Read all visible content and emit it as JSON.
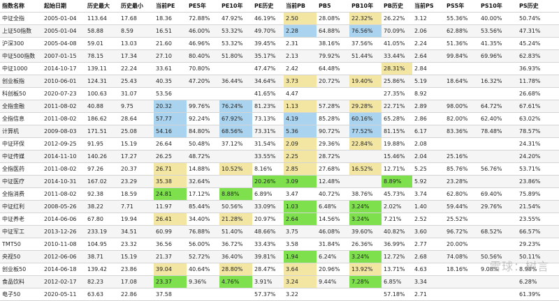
{
  "columns": [
    "指数名称",
    "起始日期",
    "历史最大",
    "历史最小",
    "当前PE",
    "PE5年",
    "PE10年",
    "PE历史",
    "当前PB",
    "PB5",
    "PB10年",
    "PB历史",
    "当前PS",
    "PS5年",
    "PS10年",
    "PS历史"
  ],
  "rows": [
    [
      "中证全指",
      "2005-01-04",
      "113.64",
      "17.68",
      "18.36",
      "72.88%",
      "47.92%",
      "46.19%",
      "2.50",
      "28.08%",
      "22.32%",
      "26.22%",
      "3.12",
      "55.36%",
      "40.00%",
      "50.74%"
    ],
    [
      "上证50指数",
      "2005-01-04",
      "58.88",
      "8.59",
      "16.51",
      "46.00%",
      "53.32%",
      "49.70%",
      "2.28",
      "64.88%",
      "76.56%",
      "70.09%",
      "2.06",
      "62.88%",
      "53.56%",
      "47.31%"
    ],
    [
      "沪深300",
      "2005-04-08",
      "59.01",
      "13.03",
      "21.60",
      "46.96%",
      "53.32%",
      "39.45%",
      "2.31",
      "38.16%",
      "37.56%",
      "41.05%",
      "2.24",
      "51.36%",
      "41.35%",
      "45.24%"
    ],
    [
      "中证500指数",
      "2007-01-15",
      "78.15",
      "17.34",
      "27.10",
      "80.40%",
      "51.80%",
      "35.17%",
      "2.13",
      "79.92%",
      "51.44%",
      "33.44%",
      "2.64",
      "99.84%",
      "69.96%",
      "62.83%"
    ],
    [
      "中证1000",
      "2014-10-17",
      "139.11",
      "22.24",
      "33.61",
      "70.80%",
      "",
      "47.47%",
      "2.42",
      "64.48%",
      "",
      "28.31%",
      "2.84",
      "",
      "",
      "36.93%"
    ],
    [
      "创业板指",
      "2010-06-01",
      "124.31",
      "25.43",
      "40.35",
      "47.20%",
      "36.44%",
      "34.64%",
      "3.73",
      "20.72%",
      "19.40%",
      "25.86%",
      "5.19",
      "18.64%",
      "16.32%",
      "11.78%"
    ],
    [
      "科创板50",
      "2020-07-23",
      "100.63",
      "31.07",
      "53.56",
      "",
      "",
      "41.65%",
      "4.47",
      "",
      "",
      "27.35%",
      "8.92",
      "",
      "",
      "26.68%"
    ],
    [
      "全指金融",
      "2011-08-02",
      "40.88",
      "9.75",
      "20.32",
      "99.76%",
      "76.24%",
      "81.23%",
      "1.13",
      "57.28%",
      "29.28%",
      "22.71%",
      "2.89",
      "98.00%",
      "64.72%",
      "67.61%"
    ],
    [
      "全指信息",
      "2011-08-02",
      "186.62",
      "28.64",
      "57.77",
      "92.24%",
      "67.92%",
      "73.13%",
      "4.19",
      "85.28%",
      "60.16%",
      "65.28%",
      "2.86",
      "82.00%",
      "62.40%",
      "63.02%"
    ],
    [
      "计算机",
      "2009-08-03",
      "171.51",
      "25.08",
      "54.16",
      "84.80%",
      "68.56%",
      "73.31%",
      "5.36",
      "90.72%",
      "77.52%",
      "81.15%",
      "6.17",
      "83.36%",
      "78.48%",
      "78.57%"
    ],
    [
      "中证环保",
      "2012-09-25",
      "91.95",
      "15.19",
      "26.64",
      "50.48%",
      "37.12%",
      "31.54%",
      "2.09",
      "29.36%",
      "22.84%",
      "19.88%",
      "2.08",
      "",
      "",
      "24.31%"
    ],
    [
      "中证传媒",
      "2014-11-10",
      "140.26",
      "17.27",
      "26.25",
      "48.72%",
      "",
      "33.55%",
      "2.25",
      "28.72%",
      "",
      "15.46%",
      "2.04",
      "25.16%",
      "",
      "24.20%"
    ],
    [
      "全指医药",
      "2011-08-02",
      "97.26",
      "20.37",
      "26.71",
      "14.88%",
      "10.52%",
      "8.16%",
      "2.85",
      "27.68%",
      "16.52%",
      "12.71%",
      "5.25",
      "85.76%",
      "56.76%",
      "53.71%"
    ],
    [
      "中证医疗",
      "2014-10-31",
      "167.02",
      "23.29",
      "35.38",
      "32.64%",
      "",
      "20.26%",
      "3.09",
      "12.48%",
      "",
      "8.89%",
      "5.92",
      "23.28%",
      "",
      "23.86%"
    ],
    [
      "全指消费",
      "2011-08-02",
      "92.38",
      "18.59",
      "24.81",
      "17.12%",
      "8.88%",
      "6.89%",
      "3.47",
      "40.72%",
      "38.76%",
      "45.73%",
      "3.74",
      "62.80%",
      "69.40%",
      "75.89%"
    ],
    [
      "中证红利",
      "2008-05-26",
      "38.22",
      "7.71",
      "11.97",
      "85.44%",
      "50.56%",
      "33.09%",
      "1.03",
      "6.48%",
      "3.24%",
      "2.02%",
      "1.40",
      "59.44%",
      "29.76%",
      "21.54%"
    ],
    [
      "中证养老",
      "2014-06-06",
      "67.80",
      "19.94",
      "26.41",
      "34.40%",
      "21.28%",
      "20.97%",
      "2.64",
      "14.56%",
      "3.24%",
      "7.21%",
      "2.52",
      "25.52%",
      "",
      "23.55%"
    ],
    [
      "中证军工",
      "2013-12-26",
      "233.19",
      "34.51",
      "60.99",
      "76.88%",
      "51.40%",
      "48.66%",
      "3.75",
      "46.08%",
      "39.60%",
      "40.82%",
      "3.60",
      "96.72%",
      "68.52%",
      "66.57%"
    ],
    [
      "TMT50",
      "2010-11-08",
      "104.95",
      "23.32",
      "36.56",
      "56.00%",
      "36.72%",
      "33.43%",
      "3.58",
      "31.84%",
      "26.36%",
      "36.99%",
      "2.77",
      "20.00%",
      "",
      "29.23%"
    ],
    [
      "央视50",
      "2012-06-06",
      "38.71",
      "15.19",
      "21.37",
      "52.72%",
      "36.40%",
      "39.81%",
      "1.94",
      "6.24%",
      "3.24%",
      "12.72%",
      "2.68",
      "74.08%",
      "50.56%",
      "50.11%"
    ],
    [
      "创业板50",
      "2014-06-18",
      "139.42",
      "23.86",
      "39.04",
      "40.64%",
      "28.80%",
      "28.47%",
      "3.64",
      "20.96%",
      "13.92%",
      "13.71%",
      "4.63",
      "18.16%",
      "9.08%",
      "8.98%"
    ],
    [
      "食品饮料",
      "2012-02-17",
      "82.23",
      "17.08",
      "23.37",
      "9.36%",
      "4.76%",
      "3.91%",
      "3.24",
      "9.44%",
      "7.28%",
      "6.85%",
      "3.34",
      "",
      "",
      "6.28%"
    ],
    [
      "电子50",
      "2020-05-11",
      "63.63",
      "22.86",
      "37.58",
      "",
      "",
      "57.37%",
      "3.22",
      "",
      "",
      "57.18%",
      "2.71",
      "",
      "",
      "61.39%"
    ]
  ],
  "highlights": {
    "0": {
      "8": "yellow",
      "10": "yellow"
    },
    "1": {
      "8": "blue",
      "10": "blue"
    },
    "4": {
      "11": "yellow"
    },
    "5": {
      "8": "yellow",
      "10": "yellow"
    },
    "7": {
      "4": "blue",
      "6": "blue",
      "8": "yellow",
      "10": "yellow"
    },
    "8": {
      "4": "blue",
      "6": "blue",
      "8": "blue",
      "10": "blue"
    },
    "9": {
      "4": "blue",
      "6": "blue",
      "8": "blue",
      "10": "blue"
    },
    "10": {
      "8": "yellow",
      "10": "yellow"
    },
    "11": {
      "8": "yellow"
    },
    "12": {
      "4": "yellow",
      "6": "yellow",
      "8": "yellow",
      "10": "yellow"
    },
    "13": {
      "4": "yellow",
      "7": "green",
      "8": "green",
      "11": "green"
    },
    "14": {
      "4": "green",
      "6": "green"
    },
    "15": {
      "8": "green",
      "10": "green"
    },
    "16": {
      "4": "yellow",
      "6": "yellow",
      "8": "green",
      "10": "green"
    },
    "19": {
      "8": "green",
      "10": "green"
    },
    "20": {
      "4": "yellow",
      "6": "yellow",
      "8": "yellow",
      "10": "yellow"
    },
    "21": {
      "4": "green",
      "6": "green",
      "8": "yellow",
      "10": "green"
    }
  },
  "colors": {
    "blue": "#a9d3ee",
    "yellow": "#f3e6a2",
    "green": "#7ee04d"
  },
  "watermark": "雪球：树言"
}
